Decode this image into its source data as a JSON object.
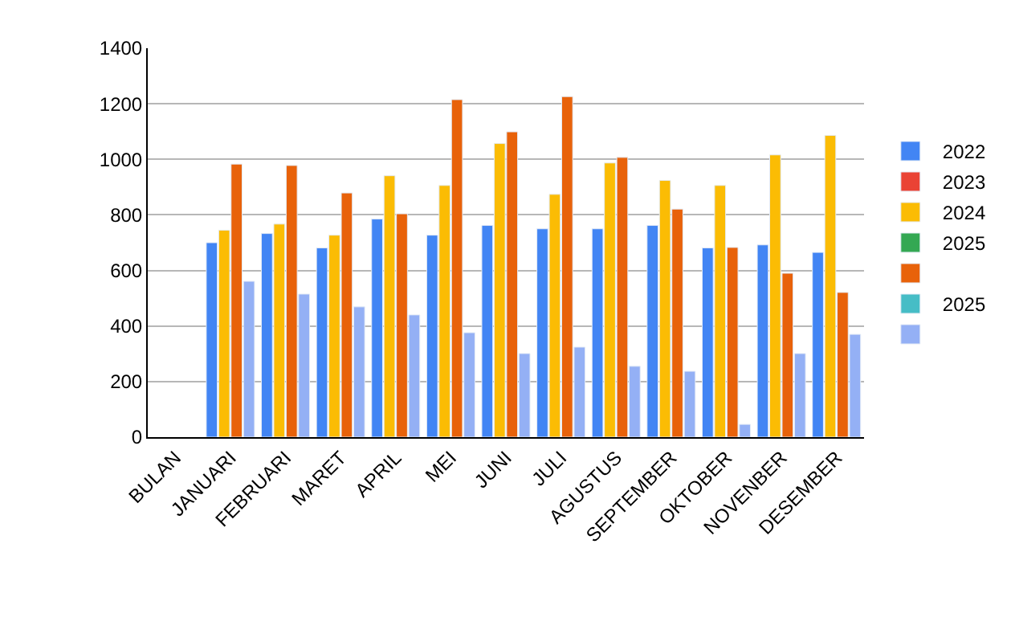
{
  "chart_data": {
    "type": "bar",
    "categories": [
      "BULAN",
      "JANUARI",
      "FEBRUARI",
      "MARET",
      "APRIL",
      "MEI",
      "JUNI",
      "JULI",
      "AGUSTUS",
      "SEPTEMBER",
      "OKTOBER",
      "NOVENBER",
      "DESEMBER"
    ],
    "series": [
      {
        "name": "2022",
        "color": "#4285f4",
        "values": [
          null,
          700,
          733,
          681,
          785,
          727,
          762,
          750,
          750,
          762,
          681,
          692,
          665
        ]
      },
      {
        "name": "2023",
        "color": "#ea4335",
        "values": [
          null,
          null,
          null,
          null,
          null,
          null,
          null,
          null,
          null,
          null,
          null,
          null,
          null
        ]
      },
      {
        "name": "2024",
        "color": "#fbbc04",
        "values": [
          null,
          745,
          767,
          727,
          941,
          906,
          1057,
          874,
          987,
          924,
          906,
          1016,
          1086
        ]
      },
      {
        "name": "2025",
        "color": "#34a853",
        "values": [
          null,
          null,
          null,
          null,
          null,
          null,
          null,
          null,
          null,
          null,
          null,
          null,
          null
        ]
      },
      {
        "color": "#e8620a",
        "values": [
          null,
          983,
          978,
          879,
          804,
          1215,
          1099,
          1226,
          1007,
          821,
          683,
          590,
          521
        ]
      },
      {
        "name": "2025",
        "color": "#46bdc6",
        "values": [
          null,
          null,
          null,
          null,
          null,
          null,
          null,
          null,
          null,
          null,
          null,
          null,
          null
        ]
      },
      {
        "color": "#94b0f5",
        "values": [
          null,
          561,
          515,
          469,
          440,
          376,
          301,
          324,
          255,
          237,
          46,
          301,
          370
        ]
      }
    ],
    "ylim": [
      0,
      1400
    ],
    "yticks": [
      0,
      200,
      400,
      600,
      800,
      1000,
      1200,
      1400
    ],
    "grid": "y",
    "legend": "right"
  }
}
